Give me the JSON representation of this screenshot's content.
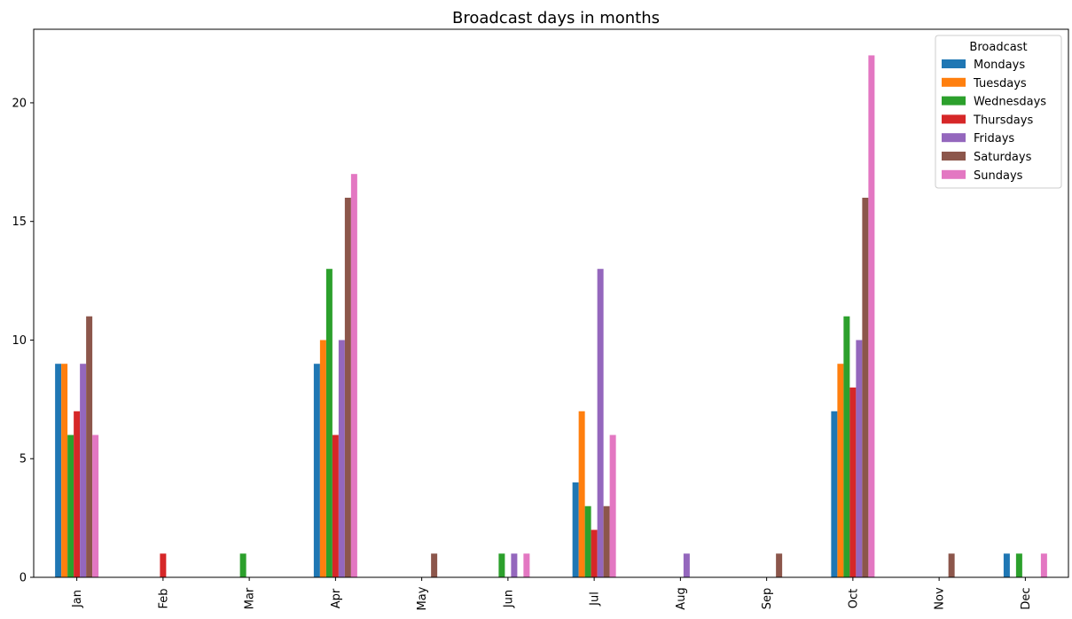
{
  "chart_data": {
    "type": "bar",
    "title": "Broadcast days in months",
    "xlabel": "",
    "ylabel": "",
    "categories": [
      "Jan",
      "Feb",
      "Mar",
      "Apr",
      "May",
      "Jun",
      "Jul",
      "Aug",
      "Sep",
      "Oct",
      "Nov",
      "Dec"
    ],
    "ylim": [
      0,
      23.1
    ],
    "yticks": [
      0,
      5,
      10,
      15,
      20
    ],
    "grid": false,
    "legend": {
      "title": "Broadcast",
      "placement": "top-right"
    },
    "series": [
      {
        "name": "Mondays",
        "color": "#1f77b4",
        "values": [
          9,
          0,
          0,
          9,
          0,
          0,
          4,
          0,
          0,
          7,
          0,
          1
        ]
      },
      {
        "name": "Tuesdays",
        "color": "#ff7f0e",
        "values": [
          9,
          0,
          0,
          10,
          0,
          0,
          7,
          0,
          0,
          9,
          0,
          0
        ]
      },
      {
        "name": "Wednesdays",
        "color": "#2ca02c",
        "values": [
          6,
          0,
          1,
          13,
          0,
          1,
          3,
          0,
          0,
          11,
          0,
          1
        ]
      },
      {
        "name": "Thursdays",
        "color": "#d62728",
        "values": [
          7,
          1,
          0,
          6,
          0,
          0,
          2,
          0,
          0,
          8,
          0,
          0
        ]
      },
      {
        "name": "Fridays",
        "color": "#9467bd",
        "values": [
          9,
          0,
          0,
          10,
          0,
          1,
          13,
          1,
          0,
          10,
          0,
          0
        ]
      },
      {
        "name": "Saturdays",
        "color": "#8c564b",
        "values": [
          11,
          0,
          0,
          16,
          1,
          0,
          3,
          0,
          1,
          16,
          1,
          0
        ]
      },
      {
        "name": "Sundays",
        "color": "#e377c2",
        "values": [
          6,
          0,
          0,
          17,
          0,
          1,
          6,
          0,
          0,
          22,
          0,
          1
        ]
      }
    ]
  }
}
